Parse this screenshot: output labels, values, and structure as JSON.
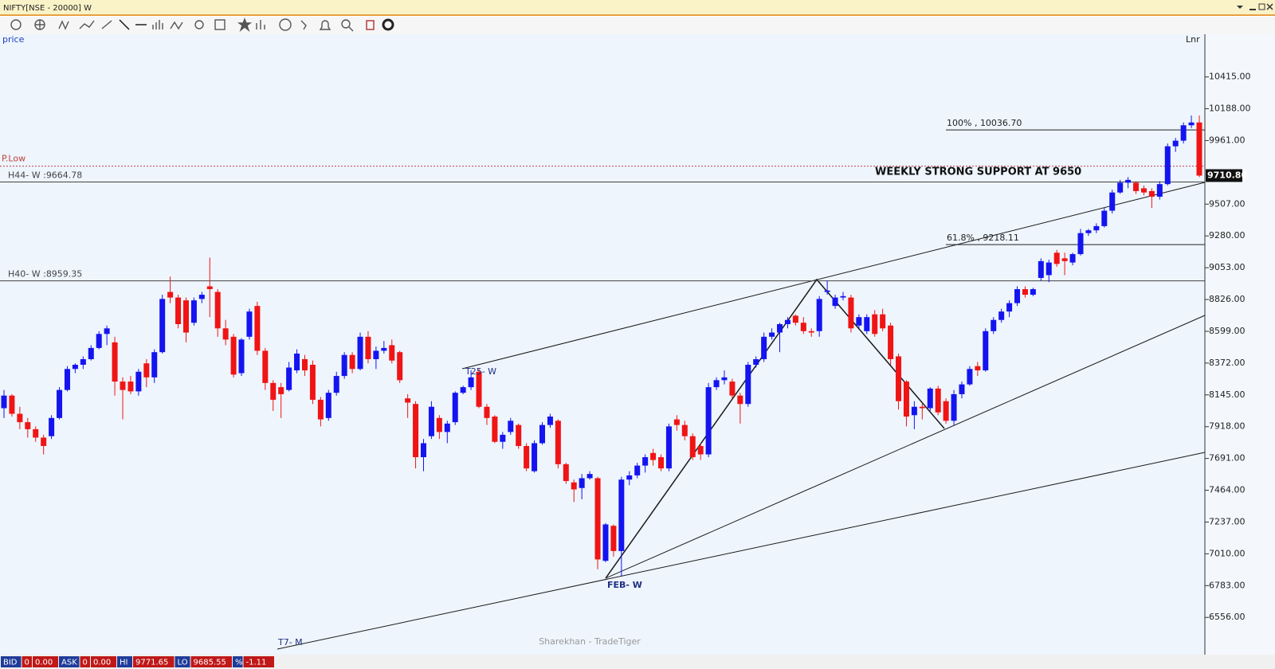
{
  "window_title": "NIFTY[NSE - 20000] W",
  "chart_data": {
    "type": "candlestick",
    "price_label": "price",
    "scale_label": "Lnr",
    "up_color": "#1414f0",
    "down_color": "#f01414",
    "ylim": [
      6290,
      10720
    ],
    "yticks": [
      {
        "value": 10415,
        "label": "10415.00"
      },
      {
        "value": 10188,
        "label": "10188.00"
      },
      {
        "value": 9961,
        "label": "9961.00"
      },
      {
        "value": 9507,
        "label": "9507.00"
      },
      {
        "value": 9280,
        "label": "9280.00"
      },
      {
        "value": 9053,
        "label": "9053.00"
      },
      {
        "value": 8826,
        "label": "8826.00"
      },
      {
        "value": 8599,
        "label": "8599.00"
      },
      {
        "value": 8372,
        "label": "8372.00"
      },
      {
        "value": 8145,
        "label": "8145.00"
      },
      {
        "value": 7918,
        "label": "7918.00"
      },
      {
        "value": 7691,
        "label": "7691.00"
      },
      {
        "value": 7464,
        "label": "7464.00"
      },
      {
        "value": 7237,
        "label": "7237.00"
      },
      {
        "value": 7010,
        "label": "7010.00"
      },
      {
        "value": 6783,
        "label": "6783.00"
      },
      {
        "value": 6556,
        "label": "6556.00"
      }
    ],
    "last_price_label": "9710.80",
    "levels": [
      {
        "label": "H44- W :9664.78",
        "value": 9664.78,
        "color": "#444444",
        "side": "left"
      },
      {
        "label": "H40- W :8959.35",
        "value": 8959.35,
        "color": "#444444",
        "side": "left"
      },
      {
        "label": "100% , 10036.70",
        "value": 10036.7,
        "color": "#222222",
        "side": "right"
      },
      {
        "label": "61.8% , 9218.11",
        "value": 9218.11,
        "color": "#222222",
        "side": "right"
      }
    ],
    "plow": {
      "label": "P.Low",
      "value": 9778,
      "color": "#c04040"
    },
    "annotations": {
      "support": "WEEKLY STRONG SUPPORT AT 9650",
      "t25": "T25- W",
      "feb": "FEB- W",
      "t7": "T7- M",
      "watermark": "Sharekhan - TradeTiger"
    },
    "ohlc": [
      [
        8050,
        8180,
        7980,
        8140
      ],
      [
        8140,
        8150,
        7990,
        8010
      ],
      [
        8010,
        8060,
        7900,
        7950
      ],
      [
        7950,
        7980,
        7840,
        7900
      ],
      [
        7900,
        7920,
        7810,
        7840
      ],
      [
        7840,
        7860,
        7720,
        7780
      ],
      [
        7850,
        8000,
        7830,
        7980
      ],
      [
        7980,
        8200,
        7970,
        8180
      ],
      [
        8180,
        8350,
        8170,
        8330
      ],
      [
        8330,
        8370,
        8300,
        8360
      ],
      [
        8360,
        8420,
        8330,
        8400
      ],
      [
        8400,
        8500,
        8390,
        8480
      ],
      [
        8480,
        8600,
        8470,
        8580
      ],
      [
        8580,
        8640,
        8500,
        8620
      ],
      [
        8520,
        8560,
        8140,
        8240
      ],
      [
        8240,
        8270,
        7970,
        8180
      ],
      [
        8240,
        8280,
        8150,
        8170
      ],
      [
        8170,
        8330,
        8140,
        8310
      ],
      [
        8370,
        8400,
        8200,
        8270
      ],
      [
        8270,
        8470,
        8230,
        8450
      ],
      [
        8450,
        8860,
        8440,
        8830
      ],
      [
        8880,
        8990,
        8800,
        8840
      ],
      [
        8840,
        8860,
        8620,
        8650
      ],
      [
        8820,
        8840,
        8520,
        8590
      ],
      [
        8660,
        8840,
        8640,
        8820
      ],
      [
        8830,
        8880,
        8800,
        8860
      ],
      [
        8920,
        9125,
        8700,
        8900
      ],
      [
        8880,
        8900,
        8560,
        8620
      ],
      [
        8620,
        8680,
        8500,
        8540
      ],
      [
        8560,
        8580,
        8270,
        8290
      ],
      [
        8300,
        8550,
        8280,
        8540
      ],
      [
        8560,
        8760,
        8540,
        8740
      ],
      [
        8780,
        8810,
        8430,
        8460
      ],
      [
        8460,
        8480,
        8180,
        8230
      ],
      [
        8230,
        8250,
        8030,
        8110
      ],
      [
        8200,
        8230,
        7980,
        8150
      ],
      [
        8180,
        8380,
        8170,
        8340
      ],
      [
        8320,
        8470,
        8300,
        8440
      ],
      [
        8400,
        8430,
        8280,
        8320
      ],
      [
        8360,
        8390,
        8080,
        8110
      ],
      [
        8110,
        8130,
        7920,
        7970
      ],
      [
        7980,
        8180,
        7960,
        8160
      ],
      [
        8160,
        8310,
        8140,
        8280
      ],
      [
        8280,
        8450,
        8260,
        8430
      ],
      [
        8430,
        8450,
        8300,
        8330
      ],
      [
        8330,
        8590,
        8320,
        8560
      ],
      [
        8560,
        8600,
        8370,
        8400
      ],
      [
        8400,
        8490,
        8330,
        8460
      ],
      [
        8460,
        8530,
        8440,
        8480
      ],
      [
        8500,
        8540,
        8370,
        8390
      ],
      [
        8450,
        8460,
        8230,
        8250
      ],
      [
        8120,
        8150,
        7980,
        8090
      ],
      [
        8080,
        8100,
        7620,
        7700
      ],
      [
        7700,
        7830,
        7600,
        7800
      ],
      [
        7850,
        8100,
        7830,
        8060
      ],
      [
        7980,
        8000,
        7830,
        7880
      ],
      [
        7880,
        7960,
        7800,
        7940
      ],
      [
        7950,
        8170,
        7930,
        8160
      ],
      [
        8160,
        8210,
        8150,
        8200
      ],
      [
        8200,
        8320,
        8180,
        8270
      ],
      [
        8310,
        8330,
        8050,
        8060
      ],
      [
        8060,
        8080,
        7930,
        7980
      ],
      [
        7990,
        8000,
        7800,
        7810
      ],
      [
        7810,
        7880,
        7760,
        7860
      ],
      [
        7880,
        7980,
        7860,
        7960
      ],
      [
        7930,
        7940,
        7760,
        7780
      ],
      [
        7780,
        7800,
        7600,
        7620
      ],
      [
        7600,
        7820,
        7590,
        7800
      ],
      [
        7800,
        7950,
        7790,
        7930
      ],
      [
        7930,
        8010,
        7910,
        7990
      ],
      [
        7960,
        7970,
        7620,
        7650
      ],
      [
        7650,
        7660,
        7510,
        7530
      ],
      [
        7520,
        7540,
        7380,
        7470
      ],
      [
        7480,
        7580,
        7400,
        7550
      ],
      [
        7550,
        7600,
        7540,
        7580
      ],
      [
        7550,
        7560,
        6900,
        6970
      ],
      [
        6960,
        7230,
        6950,
        7220
      ],
      [
        7210,
        7220,
        6990,
        7030
      ],
      [
        7030,
        7560,
        6850,
        7540
      ],
      [
        7540,
        7600,
        7500,
        7570
      ],
      [
        7570,
        7660,
        7550,
        7640
      ],
      [
        7640,
        7720,
        7590,
        7700
      ],
      [
        7730,
        7760,
        7640,
        7680
      ],
      [
        7700,
        7720,
        7600,
        7620
      ],
      [
        7620,
        7940,
        7600,
        7920
      ],
      [
        7970,
        8000,
        7890,
        7930
      ],
      [
        7930,
        7960,
        7820,
        7850
      ],
      [
        7850,
        7870,
        7680,
        7700
      ],
      [
        7780,
        7800,
        7680,
        7720
      ],
      [
        7720,
        8230,
        7700,
        8200
      ],
      [
        8200,
        8270,
        8180,
        8250
      ],
      [
        8250,
        8320,
        8220,
        8270
      ],
      [
        8240,
        8260,
        8120,
        8140
      ],
      [
        8140,
        8160,
        7940,
        8080
      ],
      [
        8080,
        8380,
        8060,
        8360
      ],
      [
        8360,
        8420,
        8340,
        8400
      ],
      [
        8400,
        8590,
        8380,
        8560
      ],
      [
        8560,
        8620,
        8540,
        8590
      ],
      [
        8590,
        8660,
        8450,
        8650
      ],
      [
        8650,
        8700,
        8620,
        8680
      ],
      [
        8710,
        8720,
        8640,
        8660
      ],
      [
        8660,
        8700,
        8580,
        8600
      ],
      [
        8600,
        8620,
        8560,
        8590
      ],
      [
        8600,
        8850,
        8560,
        8830
      ],
      [
        8880,
        8960,
        8860,
        8890
      ],
      [
        8780,
        8860,
        8760,
        8840
      ],
      [
        8840,
        8880,
        8820,
        8850
      ],
      [
        8840,
        8860,
        8590,
        8620
      ],
      [
        8640,
        8720,
        8620,
        8700
      ],
      [
        8600,
        8720,
        8580,
        8700
      ],
      [
        8720,
        8750,
        8560,
        8580
      ],
      [
        8720,
        8760,
        8600,
        8620
      ],
      [
        8640,
        8660,
        8360,
        8400
      ],
      [
        8420,
        8440,
        8040,
        8100
      ],
      [
        8240,
        8250,
        7920,
        7990
      ],
      [
        8000,
        8100,
        7900,
        8060
      ],
      [
        8060,
        8080,
        7970,
        8050
      ],
      [
        8050,
        8200,
        8030,
        8190
      ],
      [
        8190,
        8210,
        8000,
        8020
      ],
      [
        8100,
        8120,
        7940,
        7960
      ],
      [
        7960,
        8180,
        7930,
        8150
      ],
      [
        8150,
        8240,
        8120,
        8220
      ],
      [
        8220,
        8350,
        8210,
        8330
      ],
      [
        8350,
        8380,
        8280,
        8320
      ],
      [
        8320,
        8620,
        8310,
        8600
      ],
      [
        8600,
        8700,
        8580,
        8680
      ],
      [
        8680,
        8760,
        8660,
        8740
      ],
      [
        8740,
        8820,
        8700,
        8800
      ],
      [
        8800,
        8920,
        8780,
        8900
      ],
      [
        8900,
        8920,
        8840,
        8860
      ],
      [
        8860,
        8910,
        8850,
        8900
      ],
      [
        8980,
        9120,
        8960,
        9100
      ],
      [
        9000,
        9110,
        8950,
        9090
      ],
      [
        9160,
        9180,
        9060,
        9080
      ],
      [
        9120,
        9160,
        9000,
        9100
      ],
      [
        9090,
        9160,
        9070,
        9150
      ],
      [
        9150,
        9330,
        9140,
        9300
      ],
      [
        9300,
        9330,
        9280,
        9320
      ],
      [
        9320,
        9370,
        9300,
        9350
      ],
      [
        9350,
        9480,
        9340,
        9460
      ],
      [
        9460,
        9610,
        9440,
        9590
      ],
      [
        9590,
        9680,
        9580,
        9660
      ],
      [
        9660,
        9700,
        9620,
        9680
      ],
      [
        9660,
        9670,
        9580,
        9600
      ],
      [
        9620,
        9640,
        9570,
        9590
      ],
      [
        9600,
        9620,
        9480,
        9560
      ],
      [
        9560,
        9670,
        9540,
        9650
      ],
      [
        9650,
        9940,
        9640,
        9920
      ],
      [
        9920,
        9980,
        9880,
        9960
      ],
      [
        9960,
        10090,
        9940,
        10070
      ],
      [
        10070,
        10140,
        10050,
        10090
      ],
      [
        10090,
        10140,
        9700,
        9710.8
      ]
    ]
  },
  "status_bar": [
    {
      "label": "BID",
      "value": "0",
      "extra": "0.00"
    },
    {
      "label": "ASK",
      "value": "0",
      "extra": "0.00"
    },
    {
      "label": "HI",
      "value": "9771.65"
    },
    {
      "label": "LO",
      "value": "9685.55"
    },
    {
      "label": "%",
      "value": "-1.11"
    }
  ]
}
